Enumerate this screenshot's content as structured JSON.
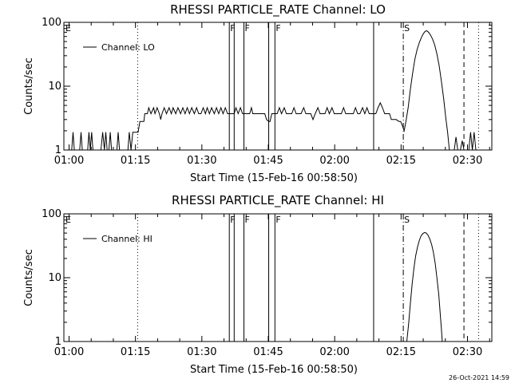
{
  "stamp": "26-Oct-2021 14:59",
  "chart_data": [
    {
      "type": "line",
      "title": "RHESSI PARTICLE_RATE Channel: LO",
      "xlabel": "Start Time (15-Feb-16 00:58:50)",
      "ylabel": "Counts/sec",
      "yscale": "log",
      "ylim": [
        1,
        100
      ],
      "xlim_min": [
        58.83,
        155.5
      ],
      "x_ticks": [
        {
          "min": 60,
          "label": "01:00"
        },
        {
          "min": 75,
          "label": "01:15"
        },
        {
          "min": 90,
          "label": "01:30"
        },
        {
          "min": 105,
          "label": "01:45"
        },
        {
          "min": 120,
          "label": "02:00"
        },
        {
          "min": 135,
          "label": "02:15"
        },
        {
          "min": 150,
          "label": "02:30"
        }
      ],
      "y_ticks": [
        {
          "value": 1,
          "label": "1"
        },
        {
          "value": 10,
          "label": "10"
        },
        {
          "value": 100,
          "label": "100"
        }
      ],
      "legend": "Channel: LO",
      "flags": [
        {
          "min": 59.0,
          "label": "E",
          "style": "none"
        },
        {
          "min": 75.5,
          "label": "",
          "style": "dotted"
        },
        {
          "min": 96.2,
          "label": "F",
          "style": "solid"
        },
        {
          "min": 97.3,
          "label": "",
          "style": "solid"
        },
        {
          "min": 99.5,
          "label": "F",
          "style": "solid"
        },
        {
          "min": 105.1,
          "label": "",
          "style": "solid"
        },
        {
          "min": 106.5,
          "label": "F",
          "style": "solid"
        },
        {
          "min": 128.8,
          "label": "",
          "style": "solid"
        },
        {
          "min": 135.5,
          "label": "S",
          "style": "dashdot"
        },
        {
          "min": 149.2,
          "label": "",
          "style": "dashed"
        },
        {
          "min": 152.5,
          "label": "",
          "style": "dotted"
        }
      ],
      "series": [
        {
          "name": "Channel: LO",
          "points": [
            [
              60.6,
              1
            ],
            [
              60.9,
              1.9
            ],
            [
              61.2,
              1
            ],
            [
              62.4,
              1
            ],
            [
              62.7,
              1.9
            ],
            [
              63.0,
              1
            ],
            [
              64.2,
              1
            ],
            [
              64.5,
              1.9
            ],
            [
              64.8,
              1
            ],
            [
              65.1,
              1.9
            ],
            [
              65.4,
              1
            ],
            [
              67.2,
              1
            ],
            [
              67.6,
              1.9
            ],
            [
              68.0,
              1
            ],
            [
              68.3,
              1.9
            ],
            [
              68.6,
              1
            ],
            [
              69.0,
              1
            ],
            [
              69.3,
              1.9
            ],
            [
              69.6,
              1
            ],
            [
              70.8,
              1
            ],
            [
              71.1,
              1.9
            ],
            [
              71.4,
              1
            ],
            [
              73.3,
              1
            ],
            [
              73.6,
              1.9
            ],
            [
              74.0,
              1
            ],
            [
              74.4,
              1.9
            ],
            [
              75.6,
              1.9
            ],
            [
              76.0,
              2.8
            ],
            [
              76.9,
              2.8
            ],
            [
              77.1,
              3.7
            ],
            [
              77.7,
              3.7
            ],
            [
              78.0,
              4.6
            ],
            [
              78.5,
              3.7
            ],
            [
              79.1,
              4.6
            ],
            [
              79.4,
              3.7
            ],
            [
              79.9,
              4.6
            ],
            [
              80.4,
              3.7
            ],
            [
              80.7,
              3.0
            ],
            [
              81.0,
              3.7
            ],
            [
              81.5,
              4.6
            ],
            [
              82.0,
              3.7
            ],
            [
              82.6,
              4.6
            ],
            [
              83.1,
              3.7
            ],
            [
              83.5,
              4.6
            ],
            [
              84.1,
              3.7
            ],
            [
              84.6,
              4.6
            ],
            [
              85.2,
              3.7
            ],
            [
              85.7,
              4.6
            ],
            [
              86.2,
              3.7
            ],
            [
              86.7,
              4.6
            ],
            [
              87.2,
              3.7
            ],
            [
              87.7,
              4.6
            ],
            [
              88.3,
              3.7
            ],
            [
              88.8,
              4.6
            ],
            [
              89.3,
              3.7
            ],
            [
              89.8,
              3.7
            ],
            [
              90.3,
              4.6
            ],
            [
              90.8,
              3.7
            ],
            [
              91.2,
              4.6
            ],
            [
              91.7,
              3.7
            ],
            [
              92.2,
              4.6
            ],
            [
              92.8,
              3.7
            ],
            [
              93.3,
              4.6
            ],
            [
              93.8,
              3.7
            ],
            [
              94.3,
              4.6
            ],
            [
              94.8,
              3.7
            ],
            [
              95.3,
              4.6
            ],
            [
              95.8,
              3.7
            ],
            [
              96.2,
              3.7
            ],
            [
              97.3,
              3.7
            ],
            [
              97.7,
              4.6
            ],
            [
              98.2,
              3.7
            ],
            [
              98.7,
              4.6
            ],
            [
              99.2,
              3.7
            ],
            [
              99.5,
              3.7
            ],
            [
              100.3,
              3.7
            ],
            [
              100.8,
              3.7
            ],
            [
              101.2,
              4.6
            ],
            [
              101.5,
              3.7
            ],
            [
              102.3,
              3.7
            ],
            [
              102.8,
              3.7
            ],
            [
              103.3,
              3.7
            ],
            [
              103.7,
              3.7
            ],
            [
              104.2,
              3.7
            ],
            [
              104.6,
              3.0
            ],
            [
              105.1,
              2.8
            ],
            [
              105.4,
              2.8
            ],
            [
              105.8,
              3.7
            ],
            [
              106.5,
              3.7
            ],
            [
              107.0,
              3.7
            ],
            [
              107.5,
              4.6
            ],
            [
              108.0,
              3.7
            ],
            [
              108.6,
              4.6
            ],
            [
              109.1,
              3.7
            ],
            [
              109.6,
              3.7
            ],
            [
              110.3,
              3.7
            ],
            [
              110.8,
              4.6
            ],
            [
              111.3,
              3.7
            ],
            [
              111.8,
              3.7
            ],
            [
              112.4,
              3.7
            ],
            [
              113.0,
              4.6
            ],
            [
              113.5,
              3.7
            ],
            [
              114.0,
              3.7
            ],
            [
              114.6,
              3.7
            ],
            [
              115.1,
              3.0
            ],
            [
              115.6,
              3.7
            ],
            [
              116.2,
              4.6
            ],
            [
              116.7,
              3.7
            ],
            [
              117.3,
              3.7
            ],
            [
              117.8,
              3.7
            ],
            [
              118.3,
              4.6
            ],
            [
              118.8,
              3.7
            ],
            [
              119.4,
              4.6
            ],
            [
              119.9,
              3.7
            ],
            [
              120.4,
              3.7
            ],
            [
              120.9,
              3.7
            ],
            [
              121.5,
              3.7
            ],
            [
              122.0,
              4.6
            ],
            [
              122.5,
              3.7
            ],
            [
              123.0,
              3.7
            ],
            [
              123.6,
              3.7
            ],
            [
              124.2,
              3.7
            ],
            [
              124.7,
              4.6
            ],
            [
              125.2,
              3.7
            ],
            [
              125.7,
              3.7
            ],
            [
              126.3,
              4.6
            ],
            [
              126.8,
              3.7
            ],
            [
              127.3,
              4.6
            ],
            [
              127.8,
              3.7
            ],
            [
              128.4,
              3.7
            ],
            [
              128.8,
              3.7
            ],
            [
              129.3,
              3.7
            ],
            [
              129.8,
              4.6
            ],
            [
              130.3,
              5.5
            ],
            [
              130.8,
              4.6
            ],
            [
              131.3,
              3.7
            ],
            [
              131.8,
              3.7
            ],
            [
              132.4,
              3.7
            ],
            [
              132.8,
              3.0
            ],
            [
              133.3,
              3.0
            ],
            [
              133.9,
              3.0
            ],
            [
              134.5,
              2.8
            ],
            [
              134.9,
              2.8
            ],
            [
              135.3,
              2.4
            ],
            [
              135.7,
              2.0
            ],
            [
              136.1,
              2.8
            ],
            [
              136.6,
              4.6
            ],
            [
              137.1,
              9.0
            ],
            [
              137.6,
              16
            ],
            [
              138.1,
              26
            ],
            [
              138.6,
              37
            ],
            [
              139.1,
              48
            ],
            [
              139.6,
              58
            ],
            [
              140.0,
              66
            ],
            [
              140.4,
              72
            ],
            [
              140.8,
              74
            ],
            [
              141.2,
              70
            ],
            [
              141.6,
              64
            ],
            [
              142.1,
              55
            ],
            [
              142.6,
              44
            ],
            [
              143.1,
              32
            ],
            [
              143.6,
              21
            ],
            [
              144.1,
              12
            ],
            [
              144.6,
              6.5
            ],
            [
              145.1,
              3.2
            ],
            [
              145.5,
              1.9
            ],
            [
              145.9,
              1
            ],
            [
              147.0,
              1
            ],
            [
              147.4,
              1.6
            ],
            [
              147.8,
              1
            ],
            [
              148.4,
              1
            ],
            [
              148.8,
              1.4
            ],
            [
              149.2,
              1
            ],
            [
              150.3,
              1
            ],
            [
              150.7,
              1.9
            ],
            [
              151.1,
              1
            ],
            [
              151.5,
              1.9
            ],
            [
              151.9,
              1
            ],
            [
              152.5,
              1
            ]
          ]
        }
      ]
    },
    {
      "type": "line",
      "title": "RHESSI PARTICLE_RATE Channel: HI",
      "xlabel": "Start Time (15-Feb-16 00:58:50)",
      "ylabel": "Counts/sec",
      "yscale": "log",
      "ylim": [
        1,
        100
      ],
      "xlim_min": [
        58.83,
        155.5
      ],
      "x_ticks": [
        {
          "min": 60,
          "label": "01:00"
        },
        {
          "min": 75,
          "label": "01:15"
        },
        {
          "min": 90,
          "label": "01:30"
        },
        {
          "min": 105,
          "label": "01:45"
        },
        {
          "min": 120,
          "label": "02:00"
        },
        {
          "min": 135,
          "label": "02:15"
        },
        {
          "min": 150,
          "label": "02:30"
        }
      ],
      "y_ticks": [
        {
          "value": 1,
          "label": "1"
        },
        {
          "value": 10,
          "label": "10"
        },
        {
          "value": 100,
          "label": "100"
        }
      ],
      "legend": "Channel: HI",
      "flags": [
        {
          "min": 59.0,
          "label": "E",
          "style": "none"
        },
        {
          "min": 75.5,
          "label": "",
          "style": "dotted"
        },
        {
          "min": 96.2,
          "label": "F",
          "style": "solid"
        },
        {
          "min": 97.3,
          "label": "",
          "style": "solid"
        },
        {
          "min": 99.5,
          "label": "F",
          "style": "solid"
        },
        {
          "min": 105.1,
          "label": "",
          "style": "solid"
        },
        {
          "min": 106.5,
          "label": "F",
          "style": "solid"
        },
        {
          "min": 128.8,
          "label": "",
          "style": "solid"
        },
        {
          "min": 135.5,
          "label": "S",
          "style": "dashdot"
        },
        {
          "min": 149.2,
          "label": "",
          "style": "dashed"
        },
        {
          "min": 152.5,
          "label": "",
          "style": "dotted"
        }
      ],
      "series": [
        {
          "name": "Channel: HI",
          "points": [
            [
              136.3,
              1
            ],
            [
              136.7,
              1.9
            ],
            [
              137.1,
              4.0
            ],
            [
              137.5,
              8.0
            ],
            [
              137.9,
              14
            ],
            [
              138.3,
              22
            ],
            [
              138.7,
              30
            ],
            [
              139.1,
              38
            ],
            [
              139.5,
              45
            ],
            [
              139.9,
              49
            ],
            [
              140.3,
              51
            ],
            [
              140.7,
              50
            ],
            [
              141.1,
              46
            ],
            [
              141.5,
              40
            ],
            [
              141.9,
              33
            ],
            [
              142.3,
              25
            ],
            [
              142.7,
              17
            ],
            [
              143.1,
              10
            ],
            [
              143.5,
              5.5
            ],
            [
              143.8,
              3.0
            ],
            [
              144.1,
              1.6
            ],
            [
              144.3,
              1
            ]
          ]
        }
      ]
    }
  ]
}
